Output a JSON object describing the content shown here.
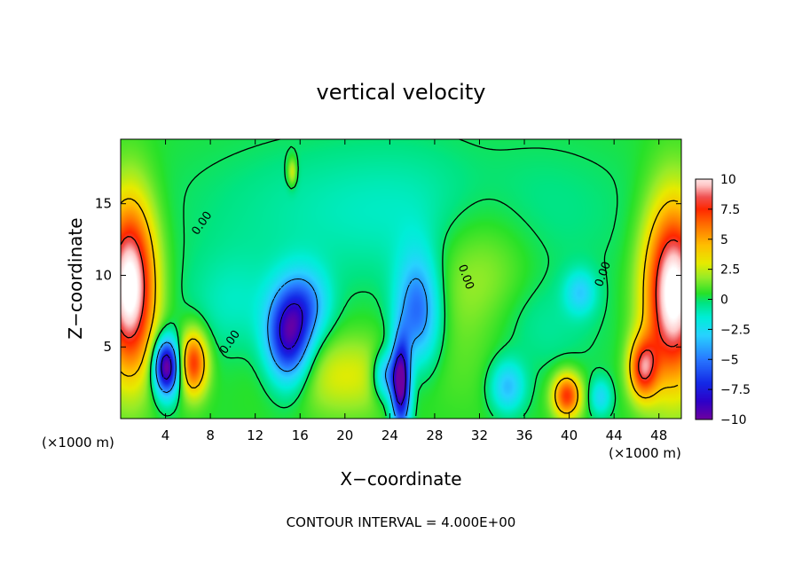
{
  "chart_data": {
    "type": "heatmap",
    "title": "vertical velocity",
    "xlabel": "X−coordinate",
    "ylabel": "Z−coordinate",
    "x_unit": "(×1000 m)",
    "x_unit_right": "(×1000 m)",
    "xlim": [
      0,
      50
    ],
    "ylim": [
      0,
      19.5
    ],
    "x_ticks": [
      4,
      8,
      12,
      16,
      20,
      24,
      28,
      32,
      36,
      40,
      44,
      48
    ],
    "y_ticks": [
      5,
      10,
      15
    ],
    "colorbar": {
      "range": [
        -10,
        10
      ],
      "tick_values": [
        10,
        7.5,
        5,
        2.5,
        0,
        -2.5,
        -5,
        -7.5,
        -10
      ],
      "tick_labels": [
        "10",
        "7.5",
        "5",
        "2.5",
        "0",
        "−2.5",
        "−5",
        "−7.5",
        "−10"
      ]
    },
    "contour_labels": [
      "0.00",
      "0.00",
      "0.00",
      "0.00"
    ],
    "footer": "CONTOUR INTERVAL = 4.000E+00",
    "blobs": [
      {
        "x": 0.8,
        "z": 9.2,
        "sx": 1.6,
        "sz": 4.2,
        "w": 11
      },
      {
        "x": 49.3,
        "z": 8.8,
        "sx": 1.8,
        "sz": 4.4,
        "w": 11
      },
      {
        "x": 46.6,
        "z": 3.5,
        "sx": 0.9,
        "sz": 1.5,
        "w": 7
      },
      {
        "x": 4.1,
        "z": 3.6,
        "sx": 0.8,
        "sz": 1.4,
        "w": -11
      },
      {
        "x": 6.5,
        "z": 3.9,
        "sx": 0.9,
        "sz": 1.6,
        "w": 7
      },
      {
        "x": 15.0,
        "z": 5.6,
        "sx": 1.4,
        "sz": 2.3,
        "w": -9
      },
      {
        "x": 16.6,
        "z": 8.0,
        "sx": 1.5,
        "sz": 1.8,
        "w": -4
      },
      {
        "x": 25.0,
        "z": 2.4,
        "sx": 0.6,
        "sz": 2.2,
        "w": -11
      },
      {
        "x": 26.5,
        "z": 7.5,
        "sx": 1.4,
        "sz": 2.8,
        "w": -6
      },
      {
        "x": 23.6,
        "z": 3.0,
        "sx": 0.8,
        "sz": 1.2,
        "w": -5
      },
      {
        "x": 34.5,
        "z": 2.2,
        "sx": 1.1,
        "sz": 1.3,
        "w": -4
      },
      {
        "x": 39.8,
        "z": 1.6,
        "sx": 0.9,
        "sz": 1.1,
        "w": 7
      },
      {
        "x": 42.8,
        "z": 1.5,
        "sx": 0.7,
        "sz": 0.9,
        "w": -3
      },
      {
        "x": 41.0,
        "z": 8.8,
        "sx": 1.0,
        "sz": 1.1,
        "w": -3
      },
      {
        "x": 20.0,
        "z": 3.0,
        "sx": 4.0,
        "sz": 2.0,
        "w": 2.5
      },
      {
        "x": 32.0,
        "z": 9.5,
        "sx": 3.5,
        "sz": 4.5,
        "w": 2.3
      },
      {
        "x": 25.5,
        "z": 14.5,
        "sx": 12.0,
        "sz": 3.5,
        "w": -1.7
      },
      {
        "x": 36.0,
        "z": 6.5,
        "sx": 4.0,
        "sz": 2.5,
        "w": -1.5
      },
      {
        "x": 10.0,
        "z": 8.0,
        "sx": 3.0,
        "sz": 2.5,
        "w": -1.5
      },
      {
        "x": 15.3,
        "z": 17.2,
        "sx": 0.3,
        "sz": 0.7,
        "w": 3
      }
    ]
  }
}
